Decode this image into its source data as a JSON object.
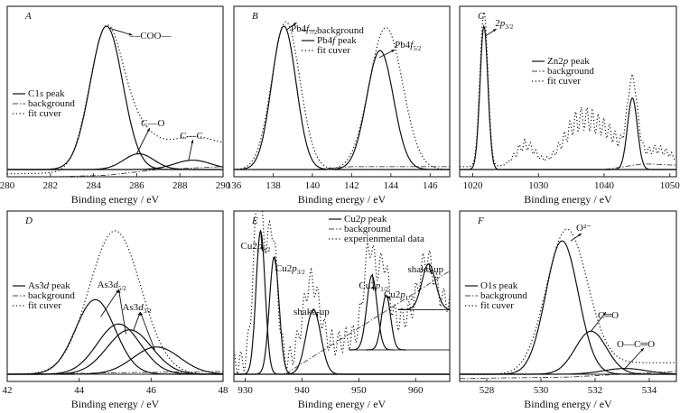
{
  "chart_data": [
    {
      "type": "line",
      "panel": "A",
      "xlabel": "Binding energy / eV",
      "xlim": [
        280,
        290
      ],
      "ylim": [
        0,
        1.1
      ],
      "xticks": [
        "280",
        "282",
        "284",
        "286",
        "288",
        "290"
      ],
      "xtick_values": [
        280,
        282,
        284,
        286,
        288,
        290
      ],
      "legend": [
        "C1s peak",
        "background",
        "fit cuver"
      ],
      "legend_position": "middle-left",
      "annotations": [
        {
          "text": "—COO—",
          "x": 284.6
        },
        {
          "text": "C—O",
          "x": 286.1
        },
        {
          "text": "C—C",
          "x": 288.5
        }
      ],
      "peaks": [
        {
          "center": 284.6,
          "height": 1.0,
          "width": 0.75
        },
        {
          "center": 286.1,
          "height": 0.11,
          "width": 0.7
        },
        {
          "center": 288.6,
          "height": 0.065,
          "width": 0.85
        }
      ],
      "fit_tail": 0.16,
      "background": [
        [
          280,
          -0.06
        ],
        [
          284.6,
          -0.04
        ],
        [
          287,
          0.0
        ],
        [
          290,
          0.02
        ]
      ]
    },
    {
      "type": "line",
      "panel": "B",
      "xlabel": "Binding energy / eV",
      "xlim": [
        136,
        147
      ],
      "ylim": [
        0,
        1.1
      ],
      "xticks": [
        "136",
        "138",
        "140",
        "142",
        "144",
        "146"
      ],
      "xtick_values": [
        136,
        138,
        140,
        142,
        144,
        146
      ],
      "legend": [
        "background",
        "Pb4f peak",
        "fit cuver"
      ],
      "legend_position": "top-center",
      "annotations": [
        {
          "text": "Pb4f7/2",
          "x": 138.6
        },
        {
          "text": "Pb4f5/2",
          "x": 143.4
        }
      ],
      "peaks": [
        {
          "center": 138.55,
          "height": 1.0,
          "width": 0.62
        },
        {
          "center": 143.45,
          "height": 0.83,
          "width": 0.68
        }
      ],
      "fit_peaks": [
        {
          "center": 138.65,
          "height": 1.03,
          "width": 0.72
        },
        {
          "center": 143.75,
          "height": 0.99,
          "width": 0.85
        }
      ],
      "background": [
        [
          136,
          0.0
        ],
        [
          140,
          0.0
        ],
        [
          142,
          0.02
        ],
        [
          147,
          0.02
        ]
      ]
    },
    {
      "type": "line",
      "panel": "C",
      "xlabel": "Binding energy / eV",
      "xlim": [
        1018,
        1051
      ],
      "ylim": [
        0,
        1.1
      ],
      "xticks": [
        "1020",
        "1030",
        "1040",
        "1050"
      ],
      "xtick_values": [
        1020,
        1030,
        1040,
        1050
      ],
      "legend": [
        "Zn2p peak",
        "background",
        "fit cuver"
      ],
      "legend_position": "top-center",
      "annotations": [
        {
          "text": "C",
          "x": 1021.5
        },
        {
          "text": "2p3/2",
          "x": 1021.8
        }
      ],
      "peaks": [
        {
          "center": 1021.7,
          "height": 1.0,
          "width": 0.6
        },
        {
          "center": 1044.3,
          "height": 0.5,
          "width": 0.75
        }
      ],
      "fit_noise_humps": [
        {
          "center": 1028,
          "height": 0.15,
          "width": 1.5
        },
        {
          "center": 1036.5,
          "height": 0.32,
          "width": 2.6
        },
        {
          "center": 1041,
          "height": 0.16,
          "width": 2.0
        },
        {
          "center": 1048,
          "height": 0.12,
          "width": 2.5
        }
      ],
      "background": [
        [
          1018,
          0.0
        ],
        [
          1040,
          0.0
        ],
        [
          1046,
          0.04
        ],
        [
          1051,
          0.03
        ]
      ]
    },
    {
      "type": "line",
      "panel": "D",
      "xlabel": "Binding energy / eV",
      "xlim": [
        42,
        48
      ],
      "ylim": [
        0,
        1.1
      ],
      "xticks": [
        "42",
        "44",
        "46",
        "48"
      ],
      "xtick_values": [
        42,
        44,
        46,
        48
      ],
      "legend": [
        "As3d peak",
        "background",
        "fit cuver"
      ],
      "legend_position": "middle-left",
      "annotations": [
        {
          "text": "As3d5/2",
          "x": 45.1
        },
        {
          "text": "As3d3/2",
          "x": 45.6
        }
      ],
      "peaks": [
        {
          "center": 44.45,
          "height": 0.52,
          "width": 0.55
        },
        {
          "center": 45.1,
          "height": 0.35,
          "width": 0.6
        },
        {
          "center": 45.4,
          "height": 0.31,
          "width": 0.62
        },
        {
          "center": 46.15,
          "height": 0.19,
          "width": 0.65
        }
      ],
      "fit_peaks": [
        {
          "center": 45.0,
          "height": 1.0,
          "width": 0.72
        }
      ],
      "background": [
        [
          42,
          0.0
        ],
        [
          48,
          0.02
        ]
      ]
    },
    {
      "type": "line",
      "panel": "E",
      "xlabel": "Binding energy / eV",
      "xlim": [
        928,
        966
      ],
      "ylim": [
        0,
        1.1
      ],
      "xticks": [
        "930",
        "940",
        "950",
        "960"
      ],
      "xtick_values": [
        930,
        940,
        950,
        960
      ],
      "legend": [
        "Cu2p peak",
        "background",
        "experienmental data"
      ],
      "legend_position": "top-right",
      "annotations": [
        {
          "text": "Cu2p3/2",
          "x": 932.7
        },
        {
          "text": "Cu2p3/2",
          "x": 935.0
        },
        {
          "text": "shake-up",
          "x": 942.0
        },
        {
          "text": "Cu2p1/2",
          "x": 952.3
        },
        {
          "text": "Cu2p1/2",
          "x": 954.8
        },
        {
          "text": "shake-up",
          "x": 962.3
        }
      ],
      "peaks": [
        {
          "center": 932.7,
          "height": 1.0,
          "width": 0.8,
          "base": 0.0
        },
        {
          "center": 935.1,
          "height": 0.82,
          "width": 0.85,
          "base": 0.0
        },
        {
          "center": 942.0,
          "height": 0.45,
          "width": 1.3,
          "base": 0.0
        },
        {
          "center": 952.3,
          "height": 0.52,
          "width": 0.9,
          "base": 0.17
        },
        {
          "center": 954.8,
          "height": 0.38,
          "width": 0.8,
          "base": 0.17
        },
        {
          "center": 962.3,
          "height": 0.32,
          "width": 1.2,
          "base": 0.45
        }
      ],
      "background": [
        [
          928,
          0.0
        ],
        [
          937,
          0.0
        ],
        [
          966,
          0.72
        ]
      ]
    },
    {
      "type": "line",
      "panel": "F",
      "xlabel": "Binding energy / eV",
      "xlim": [
        527,
        535
      ],
      "ylim": [
        0,
        1.1
      ],
      "xticks": [
        "528",
        "530",
        "532",
        "534"
      ],
      "xtick_values": [
        528,
        530,
        532,
        534
      ],
      "legend": [
        "O1s peak",
        "background",
        "fit cuver"
      ],
      "legend_position": "middle-left",
      "annotations": [
        {
          "text": "O²⁻",
          "x": 530.9
        },
        {
          "text": "C═O",
          "x": 531.9
        },
        {
          "text": "O—C═O",
          "x": 533.1
        }
      ],
      "peaks": [
        {
          "center": 530.78,
          "height": 0.93,
          "width": 0.6
        },
        {
          "center": 531.85,
          "height": 0.3,
          "width": 0.58
        },
        {
          "center": 533.1,
          "height": 0.04,
          "width": 0.8
        }
      ],
      "fit_peaks": [
        {
          "center": 530.95,
          "height": 1.0,
          "width": 0.75
        }
      ],
      "fit_tail": 0.08,
      "background": [
        [
          527,
          -0.03
        ],
        [
          531,
          -0.02
        ],
        [
          535,
          0.02
        ]
      ]
    }
  ],
  "labels": {
    "A": {
      "panel": "A",
      "l1": "C1",
      "l1i": "s",
      "l1b": " peak",
      "l2": "background",
      "l3": "fit cuver",
      "a1": "—COO—",
      "a2": "C—O",
      "a3": "C—C"
    },
    "B": {
      "panel": "B",
      "l1": "background",
      "l2": "Pb4",
      "l2i": "f",
      "l2b": " peak",
      "l3": "fit cuver",
      "a1": "Pb4",
      "a1i": "f",
      "a1s": "7/2",
      "a2": "Pb4",
      "a2i": "f",
      "a2s": "5/2"
    },
    "C": {
      "panel": "C",
      "l1": "Zn2",
      "l1i": "p",
      "l1b": " peak",
      "l2": "background",
      "l3": "fit cuver",
      "a1": "2",
      "a1i": "p",
      "a1s": "3/2"
    },
    "D": {
      "panel": "D",
      "l1": "As3",
      "l1i": "d",
      "l1b": " peak",
      "l2": "background",
      "l3": "fit cuver",
      "a1": "As3",
      "a1i": "d",
      "a1s": "5/2",
      "a2": "As3",
      "a2i": "d",
      "a2s": "3/2"
    },
    "E": {
      "panel": "E",
      "l1": "Cu2",
      "l1i": "p",
      "l1b": " peak",
      "l2": "background",
      "l3": "experienmental data",
      "a1": "Cu2",
      "a1i": "p",
      "a1s": "3/2",
      "a2": "Cu2",
      "a2i": "p",
      "a2s": "3/2",
      "a3": "shake-up",
      "a4": "Cu2",
      "a4i": "p",
      "a4s": "1/2",
      "a5": "Cu2",
      "a5i": "p",
      "a5s": "1/2",
      "a6": "shake-up"
    },
    "F": {
      "panel": "F",
      "l1": "O1",
      "l1i": "s",
      "l1b": " peak",
      "l2": "background",
      "l3": "fit cuver",
      "a1": "O²⁻",
      "a2": "C═O",
      "a3": "O—C═O"
    }
  }
}
